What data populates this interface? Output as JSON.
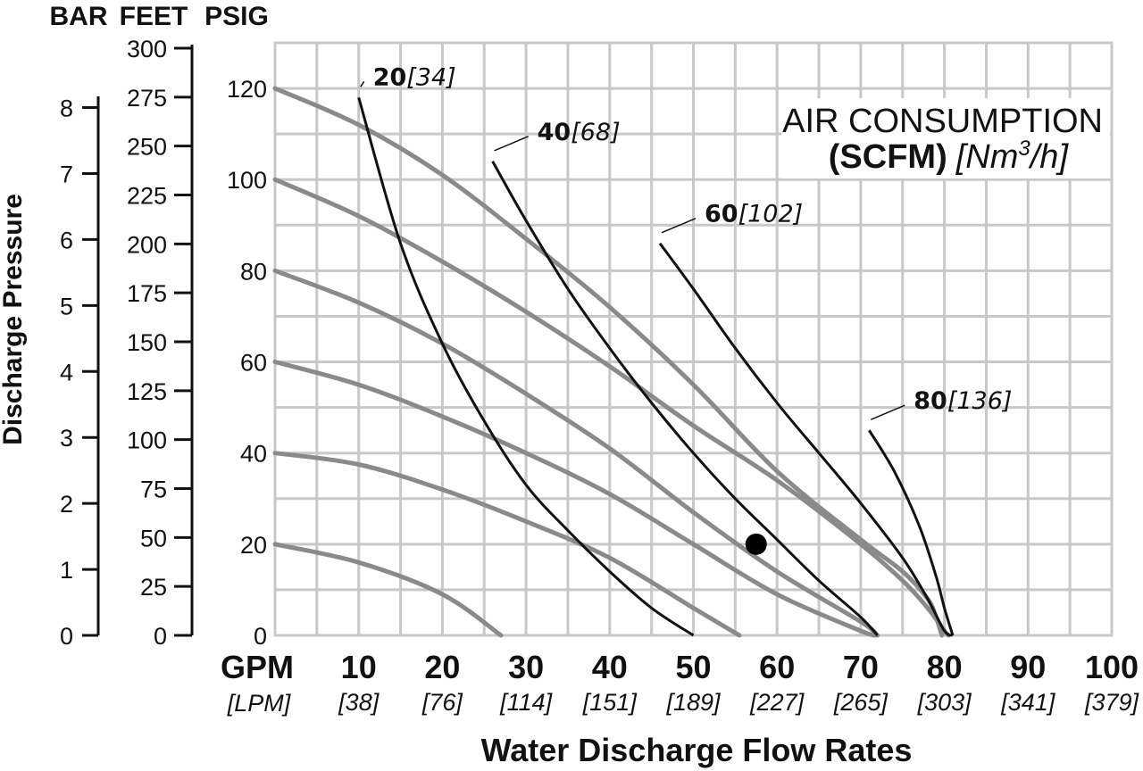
{
  "chart_data": {
    "type": "line",
    "unit_headers": [
      "BAR",
      "FEET",
      "PSIG"
    ],
    "axes": {
      "bar": {
        "ticks": [
          "0",
          "1",
          "2",
          "3",
          "4",
          "5",
          "6",
          "7",
          "8"
        ],
        "range": [
          0,
          8.5
        ]
      },
      "feet": {
        "ticks": [
          "0",
          "25",
          "50",
          "75",
          "100",
          "125",
          "150",
          "175",
          "200",
          "225",
          "250",
          "275",
          "300"
        ],
        "range": [
          0,
          300
        ]
      },
      "psig": {
        "ticks": [
          "0",
          "20",
          "40",
          "60",
          "80",
          "100",
          "120"
        ],
        "range": [
          0,
          130
        ]
      },
      "x": {
        "range": [
          0,
          100
        ],
        "unit_label": "GPM",
        "unit_label_alt": "[LPM]",
        "ticks": [
          {
            "gpm": "10",
            "lpm": "[38]"
          },
          {
            "gpm": "20",
            "lpm": "[76]"
          },
          {
            "gpm": "30",
            "lpm": "[114]"
          },
          {
            "gpm": "40",
            "lpm": "[151]"
          },
          {
            "gpm": "50",
            "lpm": "[189]"
          },
          {
            "gpm": "60",
            "lpm": "[227]"
          },
          {
            "gpm": "70",
            "lpm": "[265]"
          },
          {
            "gpm": "80",
            "lpm": "[303]"
          },
          {
            "gpm": "90",
            "lpm": "[341]"
          },
          {
            "gpm": "100",
            "lpm": "[379]"
          }
        ]
      }
    },
    "ylabel": "Discharge Pressure",
    "xlabel": "Water Discharge Flow Rates",
    "legend": {
      "line1": "AIR CONSUMPTION",
      "line2_bold": "(SCFM)",
      "line2_italic_pre": "[Nm",
      "line2_sup": "3",
      "line2_italic_post": "/h]"
    },
    "grid": true,
    "pressure_curves": [
      {
        "points": [
          [
            0,
            120
          ],
          [
            10,
            112
          ],
          [
            20,
            101
          ],
          [
            30,
            87
          ],
          [
            40,
            72
          ],
          [
            50,
            55
          ],
          [
            60,
            36
          ],
          [
            70,
            21
          ],
          [
            75,
            14
          ],
          [
            78,
            8
          ],
          [
            79,
            4
          ],
          [
            79.7,
            0
          ]
        ]
      },
      {
        "points": [
          [
            0,
            100
          ],
          [
            10,
            92
          ],
          [
            20,
            82
          ],
          [
            30,
            71
          ],
          [
            40,
            59
          ],
          [
            50,
            46
          ],
          [
            60,
            34
          ],
          [
            70,
            20
          ],
          [
            75,
            12
          ],
          [
            78,
            6
          ],
          [
            80,
            1
          ],
          [
            80.5,
            0
          ]
        ]
      },
      {
        "points": [
          [
            0,
            80
          ],
          [
            10,
            73
          ],
          [
            20,
            64
          ],
          [
            30,
            53
          ],
          [
            40,
            41
          ],
          [
            50,
            27
          ],
          [
            60,
            14
          ],
          [
            70,
            3
          ],
          [
            72,
            0
          ]
        ]
      },
      {
        "points": [
          [
            0,
            60
          ],
          [
            10,
            55
          ],
          [
            20,
            48
          ],
          [
            30,
            40
          ],
          [
            40,
            31
          ],
          [
            50,
            20
          ],
          [
            60,
            9
          ],
          [
            70,
            1
          ],
          [
            72,
            0
          ]
        ]
      },
      {
        "points": [
          [
            0,
            40
          ],
          [
            10,
            37.5
          ],
          [
            20,
            32
          ],
          [
            30,
            25
          ],
          [
            40,
            17
          ],
          [
            50,
            6
          ],
          [
            55.5,
            0
          ]
        ]
      },
      {
        "points": [
          [
            0,
            20
          ],
          [
            10,
            16
          ],
          [
            20,
            9
          ],
          [
            27,
            0
          ]
        ]
      }
    ],
    "air_consumption_lines": [
      {
        "label_bold": "20",
        "label_italic": "[34]",
        "points": [
          [
            10,
            118
          ],
          [
            15,
            86
          ],
          [
            20,
            64
          ],
          [
            25,
            47
          ],
          [
            30,
            33
          ],
          [
            35,
            23
          ],
          [
            40,
            14
          ],
          [
            45,
            6
          ],
          [
            50,
            0
          ]
        ]
      },
      {
        "label_bold": "40",
        "label_italic": "[68]",
        "points": [
          [
            26,
            104
          ],
          [
            30,
            91
          ],
          [
            35,
            76
          ],
          [
            40,
            63
          ],
          [
            45,
            51
          ],
          [
            50,
            40
          ],
          [
            55,
            30
          ],
          [
            60,
            21
          ],
          [
            65,
            12
          ],
          [
            70,
            4
          ],
          [
            72,
            0
          ]
        ]
      },
      {
        "label_bold": "60",
        "label_italic": "[102]",
        "points": [
          [
            46,
            86
          ],
          [
            50,
            76
          ],
          [
            55,
            63
          ],
          [
            60,
            51
          ],
          [
            65,
            40
          ],
          [
            70,
            29
          ],
          [
            75,
            17
          ],
          [
            78,
            8
          ],
          [
            80,
            1
          ],
          [
            81,
            0
          ]
        ]
      },
      {
        "label_bold": "80",
        "label_italic": "[136]",
        "points": [
          [
            71,
            45
          ],
          [
            74,
            36
          ],
          [
            77,
            24
          ],
          [
            79,
            13
          ],
          [
            80,
            6
          ],
          [
            81,
            0
          ]
        ]
      }
    ],
    "operating_point": {
      "gpm": 57.5,
      "psig": 20
    }
  }
}
